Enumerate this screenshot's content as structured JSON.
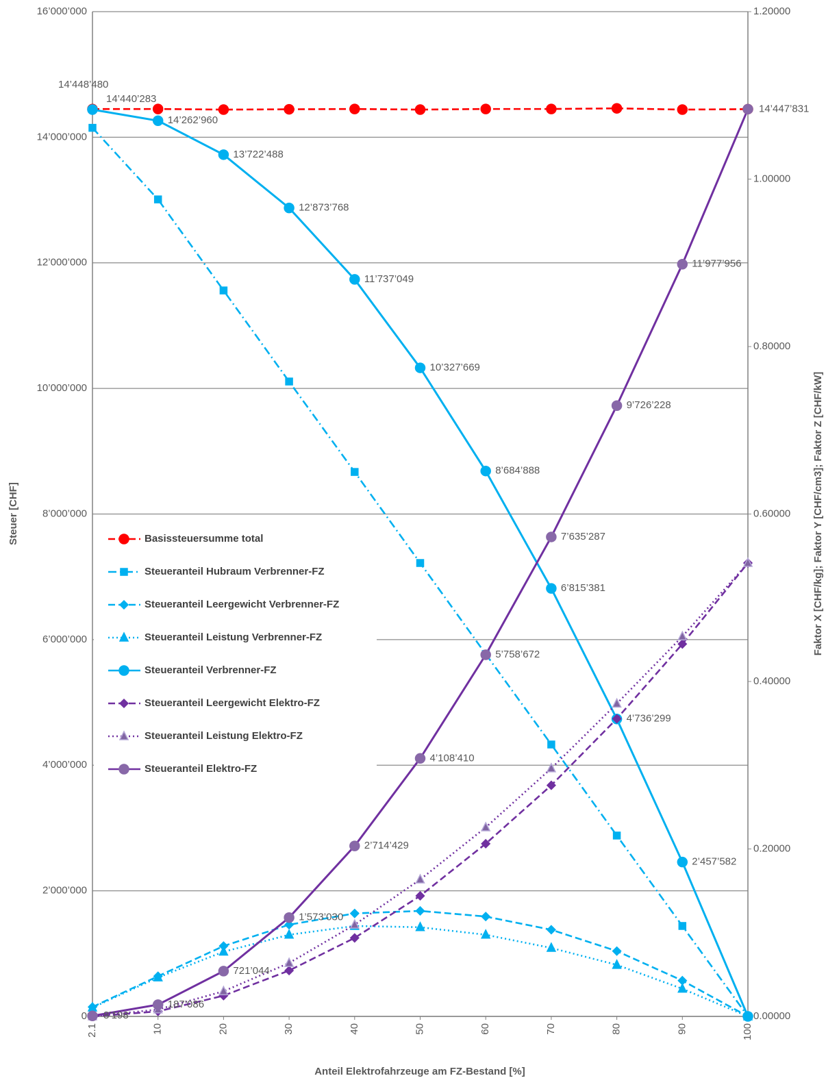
{
  "chart_data": {
    "type": "line",
    "categories": [
      "2.1",
      "10",
      "20",
      "30",
      "40",
      "50",
      "60",
      "70",
      "80",
      "90",
      "100"
    ],
    "xlabel": "Anteil Elektrofahrzeuge am FZ-Bestand [%]",
    "ylabel": "Steuer [CHF]",
    "y2label": "Faktor X [CHF/kg]; Faktor Y [CHF/cm3]; Faktor Z [CHF/kW]",
    "ylim": [
      0,
      16000000
    ],
    "yticks": [
      0,
      {
        "value": 2000000,
        "label": "2’000’000"
      },
      {
        "value": 4000000,
        "label": "4’000’000"
      },
      {
        "value": 6000000,
        "label": "6’000’000"
      },
      {
        "value": 8000000,
        "label": "8’000’000"
      },
      {
        "value": 10000000,
        "label": "10’000’000"
      },
      {
        "value": 12000000,
        "label": "12’000’000"
      },
      {
        "value": 14000000,
        "label": "14’000’000"
      },
      {
        "value": 16000000,
        "label": "16’000’000"
      }
    ],
    "y2lim": [
      0,
      1.2
    ],
    "y2ticks": [
      {
        "value": 0,
        "label": "0.00000"
      },
      {
        "value": 0.2,
        "label": "0.20000"
      },
      {
        "value": 0.4,
        "label": "0.40000"
      },
      {
        "value": 0.6,
        "label": "0.60000"
      },
      {
        "value": 0.8,
        "label": "0.80000"
      },
      {
        "value": 1.0,
        "label": "1.00000"
      },
      {
        "value": 1.2,
        "label": "1.20000"
      }
    ],
    "grid": true,
    "legend": "center-left",
    "series": [
      {
        "name": "Basissteuersumme total",
        "color": "#ff0000",
        "dash": "dash",
        "marker": "circle",
        "values": [
          14448480,
          14450000,
          14440000,
          14445000,
          14450000,
          14440000,
          14450000,
          14450000,
          14460000,
          14440000,
          14447831
        ],
        "value_labels": [
          "14’448’480",
          null,
          null,
          null,
          null,
          null,
          null,
          null,
          null,
          null,
          null
        ]
      },
      {
        "name": "Steueranteil Hubraum Verbrenner-FZ",
        "color": "#00b0f0",
        "dash": "dashdot",
        "marker": "square",
        "values": [
          14150000,
          13010000,
          11560000,
          10110000,
          8670000,
          7220000,
          5770000,
          4330000,
          2880000,
          1440000,
          0
        ]
      },
      {
        "name": "Steueranteil Leergewicht Verbrenner-FZ",
        "color": "#00b0f0",
        "dash": "dash",
        "marker": "diamond",
        "values": [
          150000,
          640000,
          1120000,
          1460000,
          1640000,
          1680000,
          1590000,
          1380000,
          1040000,
          570000,
          0
        ]
      },
      {
        "name": "Steueranteil Leistung Verbrenner-FZ",
        "color": "#00b0f0",
        "dash": "dot",
        "marker": "triangle",
        "values": [
          140000,
          620000,
          1030000,
          1300000,
          1440000,
          1420000,
          1300000,
          1090000,
          820000,
          440000,
          0
        ]
      },
      {
        "name": "Steueranteil Verbrenner-FZ",
        "color": "#00b0f0",
        "dash": "solid",
        "marker": "circle",
        "values": [
          14440283,
          14262960,
          13722488,
          12873768,
          11737049,
          10327669,
          8684888,
          6815381,
          4736299,
          2457582,
          0
        ],
        "value_labels": [
          "14’440’283",
          "14’262’960",
          "13’722’488",
          "12’873’768",
          "11’737’049",
          "10’327’669",
          "8’684’888",
          "6’815’381",
          "4’736’299",
          "2’457’582",
          null
        ]
      },
      {
        "name": "Steueranteil Leergewicht Elektro-FZ",
        "color": "#7030a0",
        "dash": "dash",
        "marker": "diamond",
        "values": [
          0,
          80000,
          330000,
          730000,
          1250000,
          1920000,
          2750000,
          3680000,
          4740000,
          5930000,
          7220000
        ]
      },
      {
        "name": "Steueranteil Leistung Elektro-FZ",
        "color": "#7030a0",
        "dash": "dot",
        "marker": "triangle",
        "values": [
          0,
          110000,
          400000,
          850000,
          1460000,
          2180000,
          3010000,
          3950000,
          4980000,
          6050000,
          7220000
        ]
      },
      {
        "name": "Steueranteil Elektro-FZ",
        "color": "#7030a0",
        "dash": "solid",
        "marker": "circle",
        "values": [
          8198,
          187086,
          721044,
          1573030,
          2714429,
          4108410,
          5758672,
          7635287,
          9726228,
          11977956,
          14447831
        ],
        "value_labels": [
          "8’198",
          "187’086",
          "721’044",
          "1’573’030",
          "2’714’429",
          "4’108’410",
          "5’758’672",
          "7’635’287",
          "9’726’228",
          "11’977’956",
          "14’447’831"
        ]
      }
    ]
  }
}
